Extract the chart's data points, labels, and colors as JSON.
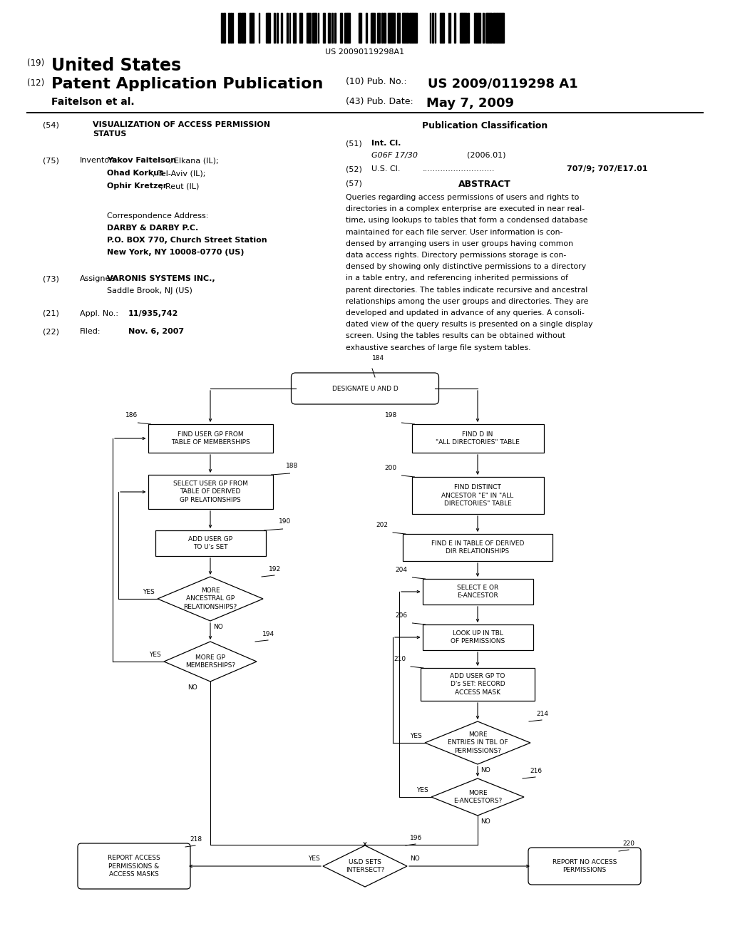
{
  "background_color": "#ffffff",
  "barcode_text": "US 20090119298A1",
  "patent_header": {
    "country": "United States",
    "type": "Patent Application Publication",
    "pub_no_label": "(10) Pub. No.:",
    "pub_no": "US 2009/0119298 A1",
    "inventors_label": "Faitelson et al.",
    "date_label": "(43) Pub. Date:",
    "date": "May 7, 2009"
  },
  "left_section": {
    "title": "VISUALIZATION OF ACCESS PERMISSION\nSTATUS",
    "inventors": "Yakov Faitelson, Elkana (IL);\nOhad Korkus, Tel-Aviv (IL);\nOphir Kretzer, Reut (IL)",
    "corr_addr": "Correspondence Address:\nDARBY & DARBY P.C.\nP.O. BOX 770, Church Street Station\nNew York, NY 10008-0770 (US)",
    "assignee": "VARONIS SYSTEMS INC.,\nSaddle Brook, NJ (US)",
    "appl_val": "11/935,742",
    "filed_val": "Nov. 6, 2007"
  },
  "right_section": {
    "pub_class_title": "Publication Classification",
    "int_cl_val": "G06F 17/30",
    "int_cl_date": "(2006.01)",
    "us_cl_val": "707/9; 707/E17.01",
    "abstract_title": "ABSTRACT",
    "abstract_text": "Queries regarding access permissions of users and rights to\ndirectories in a complex enterprise are executed in near real-\ntime, using lookups to tables that form a condensed database\nmaintained for each file server. User information is con-\ndensed by arranging users in user groups having common\ndata access rights. Directory permissions storage is con-\ndensed by showing only distinctive permissions to a directory\nin a table entry, and referencing inherited permissions of\nparent directories. The tables indicate recursive and ancestral\nrelationships among the user groups and directories. They are\ndeveloped and updated in advance of any queries. A consoli-\ndated view of the query results is presented on a single display\nscreen. Using the tables results can be obtained without\nexhaustive searches of large file system tables."
  }
}
